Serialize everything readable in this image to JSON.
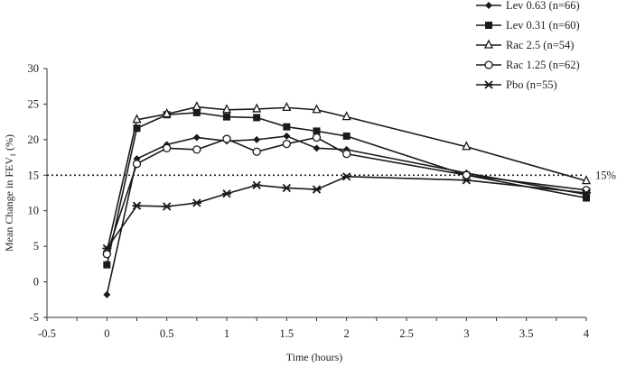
{
  "chart_data": {
    "type": "line",
    "title": "",
    "xlabel": "Time (hours)",
    "ylabel": "Mean Change in FEV",
    "ylabel_subscript": "1",
    "ylabel_suffix": " (%)",
    "xlim": [
      -0.5,
      4
    ],
    "ylim": [
      -5,
      30
    ],
    "xticks": [
      -0.5,
      0,
      0.5,
      1,
      1.5,
      2,
      2.5,
      3,
      3.5,
      4
    ],
    "xtick_labels": [
      "-0.5",
      "0",
      "0.5",
      "1",
      "1.5",
      "2",
      "2.5",
      "3",
      "3.5",
      "4"
    ],
    "yticks": [
      -5,
      0,
      5,
      10,
      15,
      20,
      25,
      30
    ],
    "ytick_labels": [
      "-5",
      "0",
      "5",
      "10",
      "15",
      "20",
      "25",
      "30"
    ],
    "grid": false,
    "legend_position": "top-right",
    "reference_line": {
      "y": 15,
      "label": "15%",
      "style": "dotted"
    },
    "x": [
      0,
      0.25,
      0.5,
      0.75,
      1,
      1.25,
      1.5,
      1.75,
      2,
      3,
      4
    ],
    "series": [
      {
        "name": "Lev 0.63  (n=66)",
        "marker": "diamond-filled",
        "values": [
          -1.8,
          17.3,
          19.3,
          20.3,
          19.8,
          20.0,
          20.5,
          18.8,
          18.6,
          15.3,
          12.3
        ]
      },
      {
        "name": "Lev 0.31 (n=60)",
        "marker": "square-filled",
        "values": [
          2.4,
          21.6,
          23.5,
          23.8,
          23.2,
          23.1,
          21.8,
          21.2,
          20.5,
          15.0,
          11.8
        ]
      },
      {
        "name": "Rac 2.5   (n=54)",
        "marker": "triangle-open",
        "values": [
          4.3,
          22.8,
          23.6,
          24.6,
          24.2,
          24.3,
          24.5,
          24.2,
          23.2,
          19.0,
          14.2
        ]
      },
      {
        "name": "Rac 1.25  (n=62)",
        "marker": "circle-open",
        "values": [
          3.9,
          16.6,
          18.8,
          18.6,
          20.1,
          18.3,
          19.4,
          20.3,
          18.0,
          15.0,
          12.9
        ]
      },
      {
        "name": "Pbo  (n=55)",
        "marker": "asterisk",
        "values": [
          4.7,
          10.7,
          10.6,
          11.1,
          12.4,
          13.6,
          13.2,
          13.0,
          14.8,
          14.3,
          12.5
        ]
      }
    ],
    "colors": {
      "line": "#1a1a1a",
      "axis": "#333333",
      "text": "#222222"
    }
  }
}
